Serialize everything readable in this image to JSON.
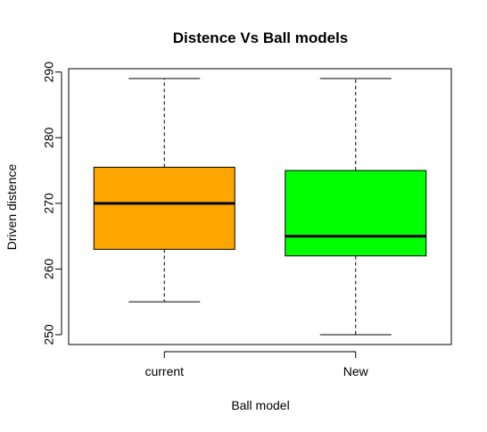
{
  "chart_data": {
    "type": "boxplot",
    "title": "Distence Vs Ball models",
    "xlabel": "Ball model",
    "ylabel": "Driven distence",
    "ylim": [
      248.5,
      290.5
    ],
    "y_ticks": [
      250,
      260,
      270,
      280,
      290
    ],
    "grid": false,
    "categories": [
      "current",
      "New"
    ],
    "boxes": [
      {
        "category": "current",
        "whisker_low": 255,
        "q1": 263,
        "median": 270,
        "q3": 275.5,
        "whisker_high": 289,
        "fill": "#FFA500"
      },
      {
        "category": "New",
        "whisker_low": 250,
        "q1": 262,
        "median": 265,
        "q3": 275,
        "whisker_high": 289,
        "fill": "#00FF00"
      }
    ]
  }
}
